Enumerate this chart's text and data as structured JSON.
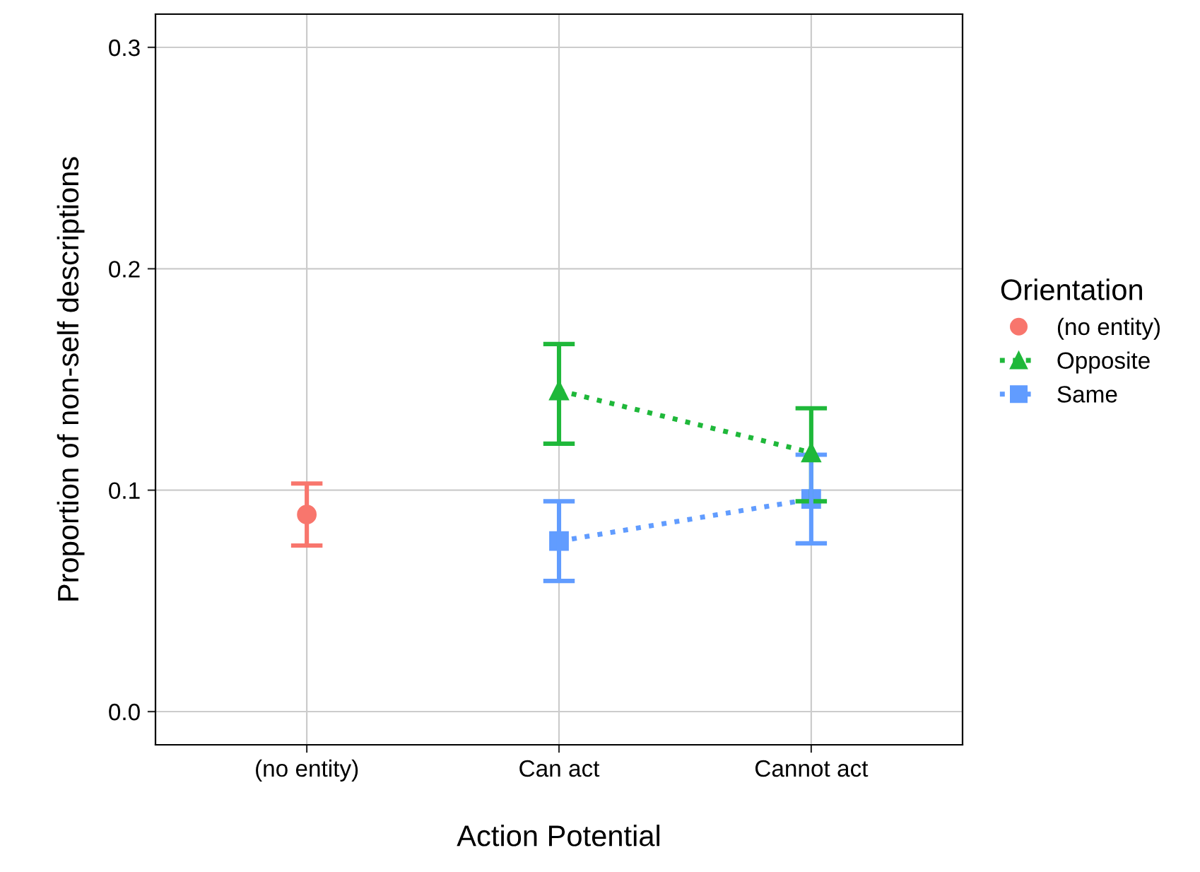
{
  "chart_data": {
    "type": "line",
    "xlabel": "Action Potential",
    "ylabel": "Proportion of non-self descriptions",
    "legend_title": "Orientation",
    "categories": [
      "(no entity)",
      "Can act",
      "Cannot act"
    ],
    "series": [
      {
        "name": "(no entity)",
        "color": "#f8766d",
        "marker": "circle",
        "values": [
          0.089,
          null,
          null
        ],
        "errors": [
          [
            0.075,
            0.103
          ],
          null,
          null
        ]
      },
      {
        "name": "Opposite",
        "color": "#1fb83a",
        "marker": "triangle",
        "line_style": "dotted",
        "values": [
          null,
          0.145,
          0.117
        ],
        "errors": [
          null,
          [
            0.121,
            0.166
          ],
          [
            0.095,
            0.137
          ]
        ]
      },
      {
        "name": "Same",
        "color": "#619cff",
        "marker": "square",
        "line_style": "dotted",
        "values": [
          null,
          0.077,
          0.096
        ],
        "errors": [
          null,
          [
            0.059,
            0.095
          ],
          [
            0.076,
            0.116
          ]
        ]
      }
    ],
    "ylim": [
      -0.015,
      0.315
    ],
    "yticks": [
      {
        "value": 0,
        "label": "0.0"
      },
      0.1,
      0.2,
      0.3
    ],
    "grid": true,
    "legend": "right"
  }
}
